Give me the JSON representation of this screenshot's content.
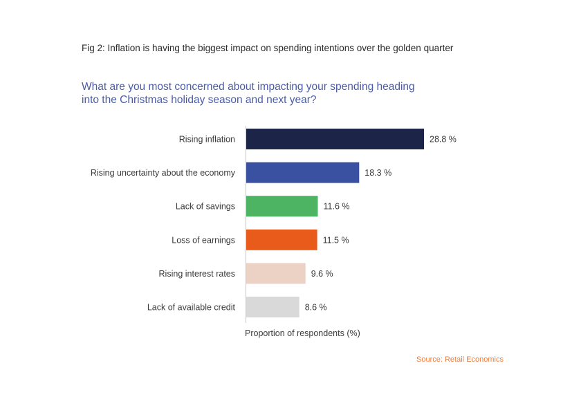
{
  "figure": {
    "caption": "Fig 2: Inflation is having the biggest impact on spending intentions over the golden quarter",
    "question_line1": "What are you most concerned about impacting your spending heading",
    "question_line2": "into the Christmas holiday season and next year?",
    "source": "Source: Retail Economics"
  },
  "chart_data": {
    "type": "bar",
    "orientation": "horizontal",
    "categories": [
      "Rising inflation",
      "Rising uncertainty about the economy",
      "Lack of savings",
      "Loss of earnings",
      "Rising interest rates",
      "Lack of available credit"
    ],
    "values": [
      28.8,
      18.3,
      11.6,
      11.5,
      9.6,
      8.6
    ],
    "value_labels": [
      "28.8 %",
      "18.3 %",
      "11.6 %",
      "11.5 %",
      "9.6 %",
      "8.6 %"
    ],
    "colors": [
      "#1c2448",
      "#3a50a0",
      "#4db464",
      "#e95b1a",
      "#ecd2c4",
      "#d9d9d9"
    ],
    "xlabel": "Proportion of respondents (%)",
    "xlim": [
      0,
      28.8
    ],
    "grid": false,
    "legend": "none"
  }
}
